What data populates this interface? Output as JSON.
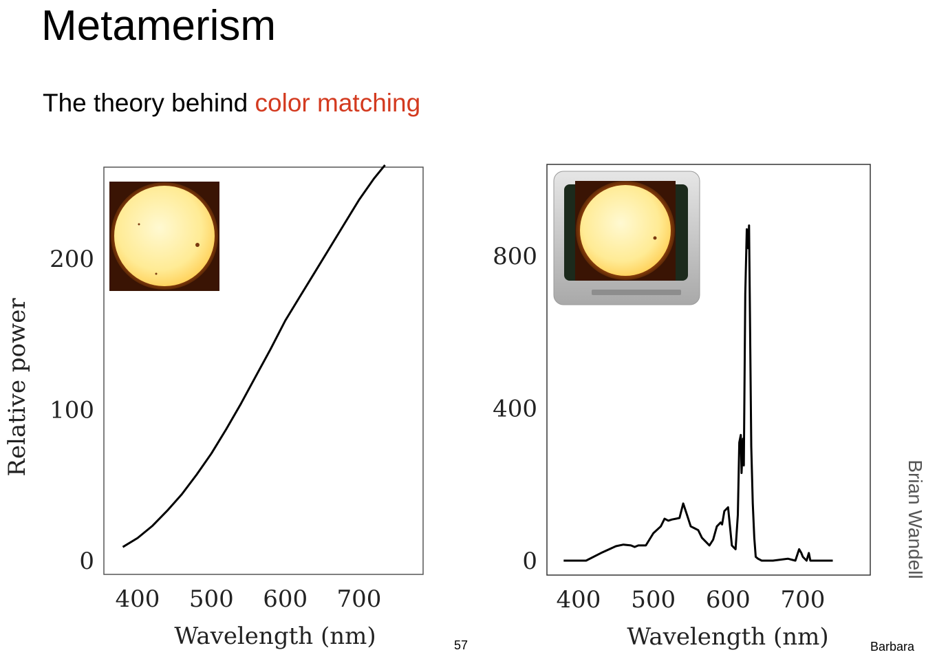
{
  "slide": {
    "title": "Metamerism",
    "subtitle_prefix": "The theory behind ",
    "subtitle_highlight": "color matching",
    "highlight_color": "#d33a1f",
    "credit": "Brian Wandell",
    "page_number": "57",
    "footer_right": "Barbara"
  },
  "chart_data": [
    {
      "type": "line",
      "title": "",
      "xlabel": "Wavelength (nm)",
      "ylabel": "Relative power",
      "xlim": [
        370,
        800
      ],
      "ylim": [
        -5,
        260
      ],
      "xticks": [
        400,
        500,
        600,
        700
      ],
      "yticks": [
        0,
        100,
        200
      ],
      "grid": false,
      "inset": "sun-image",
      "series": [
        {
          "name": "Sun spectrum",
          "x": [
            380,
            400,
            420,
            440,
            460,
            480,
            500,
            520,
            540,
            560,
            580,
            600,
            620,
            640,
            660,
            680,
            700,
            720,
            735
          ],
          "values": [
            9,
            15,
            23,
            33,
            44,
            57,
            71,
            87,
            104,
            122,
            140,
            159,
            175,
            191,
            207,
            223,
            239,
            253,
            262
          ]
        }
      ]
    },
    {
      "type": "line",
      "title": "",
      "xlabel": "Wavelength (nm)",
      "ylabel": "",
      "xlim": [
        370,
        790
      ],
      "ylim": [
        -20,
        1050
      ],
      "xticks": [
        400,
        500,
        600,
        700
      ],
      "yticks": [
        0,
        400,
        800
      ],
      "grid": false,
      "inset": "tv-image",
      "series": [
        {
          "name": "TV display spectrum",
          "x": [
            380,
            410,
            430,
            450,
            460,
            470,
            475,
            480,
            490,
            500,
            510,
            515,
            520,
            525,
            530,
            535,
            540,
            545,
            550,
            555,
            560,
            565,
            570,
            575,
            580,
            585,
            590,
            592,
            595,
            600,
            603,
            605,
            610,
            613,
            615,
            617,
            618,
            620,
            621,
            623,
            625,
            627,
            628,
            629,
            630,
            631,
            633,
            635,
            637,
            640,
            645,
            650,
            660,
            680,
            690,
            695,
            698,
            700,
            705,
            708,
            710,
            720,
            740
          ],
          "values": [
            0,
            0,
            20,
            38,
            42,
            40,
            36,
            40,
            40,
            72,
            90,
            110,
            105,
            108,
            110,
            112,
            150,
            120,
            90,
            85,
            80,
            60,
            50,
            40,
            55,
            90,
            100,
            95,
            130,
            140,
            80,
            40,
            30,
            120,
            310,
            330,
            230,
            320,
            250,
            700,
            870,
            820,
            880,
            700,
            500,
            300,
            150,
            60,
            10,
            5,
            0,
            0,
            0,
            5,
            0,
            30,
            20,
            10,
            0,
            20,
            0,
            0,
            0
          ]
        }
      ]
    }
  ]
}
